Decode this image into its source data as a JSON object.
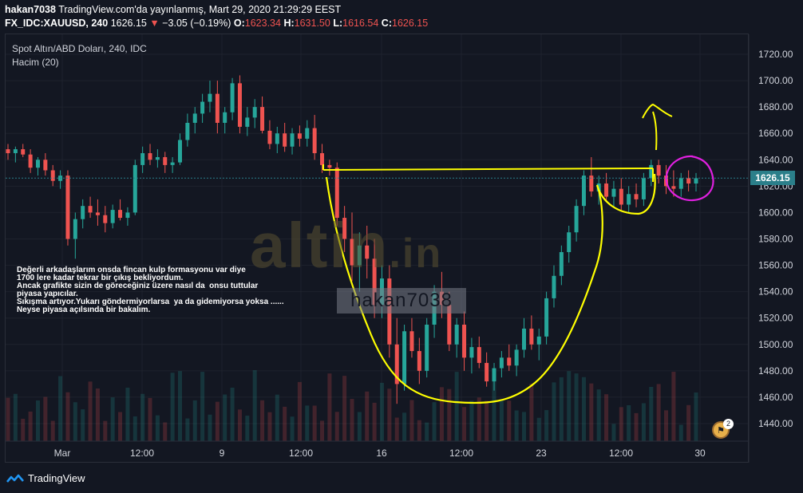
{
  "header": {
    "user": "hakan7038",
    "published": "TradingView.com'da yayınlanmış, Mart 29, 2020 21:29:29 EEST",
    "symbol": "FX_IDC:XAUUSD, 240",
    "last": "1626.15",
    "change_arrow": "▼",
    "change": "−3.05 (−0.19%)",
    "o_label": "O:",
    "o_value": "1623.34",
    "h_label": "H:",
    "h_value": "1631.50",
    "l_label": "L:",
    "l_value": "1616.54",
    "c_label": "C:",
    "c_value": "1626.15"
  },
  "legend": {
    "series": "Spot Altın/ABD Doları, 240, IDC",
    "volume": "Hacim (20)"
  },
  "note": "Değerli arkadaşlarım onsda fincan kulp formasyonu var diye\n1700 lere kadar tekrar bir çıkış bekliyordum.\nAncak grafikte sizin de göreceğiniz üzere nasıl da  onsu tuttular\npiyasa yapıcılar.\nSıkışma artıyor.Yukarı göndermiyorlarsa  ya da gidemiyorsa yoksa ......\nNeyse piyasa açılsında bir bakalım.",
  "user_stamp": "hakan7038",
  "watermark": {
    "main": "altin",
    "tld": ".in"
  },
  "price_badge": "1626.15",
  "event_count": "2",
  "brand": "TradingView",
  "colors": {
    "up": "#26a69a",
    "down": "#ef5350",
    "drawing_yellow": "#ffff00",
    "drawing_magenta": "#e020e0",
    "price_line": "#2b7f8a"
  },
  "chart_data": {
    "type": "candlestick",
    "title": "Spot Altın/ABD Doları, 240, IDC",
    "ylim": [
      1430,
      1730
    ],
    "y_ticks": [
      1440,
      1460,
      1480,
      1500,
      1520,
      1540,
      1560,
      1580,
      1600,
      1620,
      1640,
      1660,
      1680,
      1700,
      1720
    ],
    "x_ticks": [
      "Mar",
      "12:00",
      "9",
      "12:00",
      "16",
      "12:00",
      "23",
      "12:00",
      "30"
    ],
    "grid": true,
    "current_price": 1626.15,
    "candles": [
      [
        1648,
        1652,
        1640,
        1645
      ],
      [
        1645,
        1650,
        1638,
        1648
      ],
      [
        1648,
        1652,
        1642,
        1644
      ],
      [
        1644,
        1648,
        1630,
        1634
      ],
      [
        1634,
        1642,
        1628,
        1640
      ],
      [
        1640,
        1645,
        1628,
        1632
      ],
      [
        1632,
        1636,
        1620,
        1624
      ],
      [
        1624,
        1632,
        1618,
        1628
      ],
      [
        1628,
        1632,
        1575,
        1580
      ],
      [
        1580,
        1600,
        1565,
        1595
      ],
      [
        1595,
        1610,
        1588,
        1605
      ],
      [
        1605,
        1612,
        1596,
        1600
      ],
      [
        1600,
        1610,
        1590,
        1598
      ],
      [
        1598,
        1605,
        1585,
        1592
      ],
      [
        1592,
        1606,
        1588,
        1602
      ],
      [
        1602,
        1610,
        1594,
        1596
      ],
      [
        1596,
        1604,
        1590,
        1600
      ],
      [
        1600,
        1640,
        1598,
        1636
      ],
      [
        1636,
        1650,
        1630,
        1645
      ],
      [
        1645,
        1652,
        1636,
        1640
      ],
      [
        1640,
        1648,
        1634,
        1642
      ],
      [
        1642,
        1646,
        1630,
        1636
      ],
      [
        1636,
        1642,
        1630,
        1638
      ],
      [
        1638,
        1660,
        1636,
        1655
      ],
      [
        1655,
        1675,
        1650,
        1668
      ],
      [
        1668,
        1680,
        1660,
        1675
      ],
      [
        1675,
        1690,
        1668,
        1684
      ],
      [
        1684,
        1700,
        1676,
        1690
      ],
      [
        1690,
        1700,
        1660,
        1668
      ],
      [
        1668,
        1680,
        1660,
        1676
      ],
      [
        1676,
        1702,
        1670,
        1698
      ],
      [
        1698,
        1704,
        1660,
        1665
      ],
      [
        1665,
        1680,
        1658,
        1672
      ],
      [
        1672,
        1686,
        1664,
        1680
      ],
      [
        1680,
        1688,
        1660,
        1662
      ],
      [
        1662,
        1670,
        1648,
        1652
      ],
      [
        1652,
        1665,
        1645,
        1660
      ],
      [
        1660,
        1668,
        1646,
        1650
      ],
      [
        1650,
        1664,
        1644,
        1660
      ],
      [
        1660,
        1666,
        1650,
        1656
      ],
      [
        1656,
        1670,
        1650,
        1664
      ],
      [
        1664,
        1674,
        1640,
        1645
      ],
      [
        1645,
        1652,
        1630,
        1636
      ],
      [
        1636,
        1640,
        1628,
        1634
      ],
      [
        1634,
        1638,
        1590,
        1596
      ],
      [
        1596,
        1605,
        1570,
        1580
      ],
      [
        1580,
        1600,
        1548,
        1560
      ],
      [
        1560,
        1585,
        1540,
        1575
      ],
      [
        1575,
        1590,
        1550,
        1565
      ],
      [
        1565,
        1580,
        1520,
        1530
      ],
      [
        1530,
        1560,
        1520,
        1550
      ],
      [
        1550,
        1560,
        1490,
        1500
      ],
      [
        1500,
        1520,
        1455,
        1470
      ],
      [
        1470,
        1515,
        1465,
        1510
      ],
      [
        1510,
        1520,
        1490,
        1495
      ],
      [
        1495,
        1505,
        1470,
        1480
      ],
      [
        1480,
        1520,
        1475,
        1515
      ],
      [
        1515,
        1545,
        1505,
        1540
      ],
      [
        1540,
        1555,
        1520,
        1530
      ],
      [
        1530,
        1540,
        1495,
        1500
      ],
      [
        1500,
        1520,
        1490,
        1515
      ],
      [
        1515,
        1525,
        1480,
        1490
      ],
      [
        1490,
        1505,
        1478,
        1498
      ],
      [
        1498,
        1506,
        1482,
        1486
      ],
      [
        1486,
        1494,
        1468,
        1472
      ],
      [
        1472,
        1486,
        1465,
        1482
      ],
      [
        1482,
        1495,
        1475,
        1490
      ],
      [
        1490,
        1500,
        1480,
        1484
      ],
      [
        1484,
        1500,
        1476,
        1496
      ],
      [
        1496,
        1520,
        1490,
        1512
      ],
      [
        1512,
        1522,
        1496,
        1500
      ],
      [
        1500,
        1512,
        1488,
        1506
      ],
      [
        1506,
        1540,
        1500,
        1535
      ],
      [
        1535,
        1560,
        1528,
        1552
      ],
      [
        1552,
        1575,
        1545,
        1570
      ],
      [
        1570,
        1590,
        1562,
        1585
      ],
      [
        1585,
        1610,
        1578,
        1605
      ],
      [
        1605,
        1632,
        1598,
        1628
      ],
      [
        1628,
        1642,
        1612,
        1616
      ],
      [
        1616,
        1628,
        1606,
        1622
      ],
      [
        1622,
        1630,
        1608,
        1612
      ],
      [
        1612,
        1624,
        1604,
        1618
      ],
      [
        1618,
        1626,
        1602,
        1606
      ],
      [
        1606,
        1620,
        1600,
        1614
      ],
      [
        1614,
        1622,
        1604,
        1610
      ],
      [
        1610,
        1630,
        1605,
        1626
      ],
      [
        1626,
        1640,
        1620,
        1636
      ],
      [
        1636,
        1640,
        1622,
        1628
      ],
      [
        1628,
        1636,
        1614,
        1620
      ],
      [
        1620,
        1632,
        1612,
        1618
      ],
      [
        1618,
        1630,
        1612,
        1626
      ],
      [
        1626,
        1632,
        1616,
        1622
      ],
      [
        1622,
        1630,
        1616,
        1626
      ]
    ]
  }
}
